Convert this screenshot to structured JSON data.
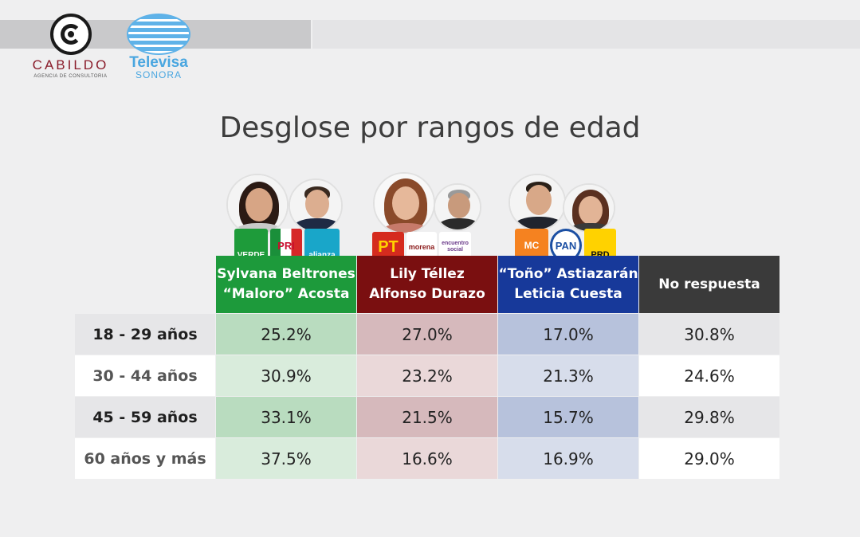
{
  "branding": {
    "cabildo_name": "CABILDO",
    "cabildo_sub": "AGENCIA DE CONSULTORIA",
    "televisa_name": "Televisa",
    "televisa_sub": "SONORA"
  },
  "colors": {
    "green": "#1d9a3b",
    "red": "#7a0f10",
    "blue": "#17399a",
    "dark": "#3a3a3a"
  },
  "chart_data": {
    "type": "table",
    "title": "Desglose por rangos de edad",
    "columns": [
      {
        "line1": "Sylvana Beltrones",
        "line2": "“Maloro” Acosta",
        "logos": [
          "VERDE",
          "PRI",
          "alianza"
        ]
      },
      {
        "line1": "Lily Téllez",
        "line2": "Alfonso Durazo",
        "logos": [
          "PT",
          "morena",
          "encuentro social"
        ]
      },
      {
        "line1": "“Toño” Astiazarán",
        "line2": "Leticia Cuesta",
        "logos": [
          "MC",
          "PAN",
          "PRD"
        ]
      },
      {
        "line1": "No respuesta",
        "line2": "",
        "logos": []
      }
    ],
    "rows": [
      {
        "label": "18 - 29 años",
        "values": [
          "25.2%",
          "27.0%",
          "17.0%",
          "30.8%"
        ]
      },
      {
        "label": "30 - 44 años",
        "values": [
          "30.9%",
          "23.2%",
          "21.3%",
          "24.6%"
        ]
      },
      {
        "label": "45 - 59 años",
        "values": [
          "33.1%",
          "21.5%",
          "15.7%",
          "29.8%"
        ]
      },
      {
        "label": "60 años y más",
        "values": [
          "37.5%",
          "16.6%",
          "16.9%",
          "29.0%"
        ]
      }
    ]
  }
}
